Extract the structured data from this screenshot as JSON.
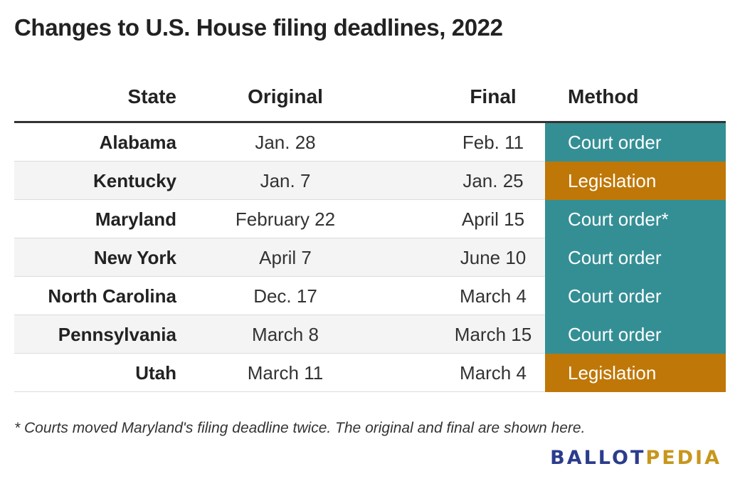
{
  "title": "Changes to U.S. House filing deadlines, 2022",
  "columns": {
    "state": "State",
    "original": "Original",
    "final": "Final",
    "method": "Method"
  },
  "method_colors": {
    "Court order": "#348f95",
    "Court order*": "#348f95",
    "Legislation": "#bf7707"
  },
  "rows": [
    {
      "state": "Alabama",
      "original": "Jan. 28",
      "final": "Feb. 11",
      "method": "Court order"
    },
    {
      "state": "Kentucky",
      "original": "Jan. 7",
      "final": "Jan. 25",
      "method": "Legislation"
    },
    {
      "state": "Maryland",
      "original": "February 22",
      "final": "April 15",
      "method": "Court order*"
    },
    {
      "state": "New York",
      "original": "April 7",
      "final": "June 10",
      "method": "Court order"
    },
    {
      "state": "North Carolina",
      "original": "Dec. 17",
      "final": "March 4",
      "method": "Court order"
    },
    {
      "state": "Pennsylvania",
      "original": "March 8",
      "final": "March 15",
      "method": "Court order"
    },
    {
      "state": "Utah",
      "original": "March 11",
      "final": "March 4",
      "method": "Legislation"
    }
  ],
  "footnote": "* Courts moved Maryland's filing deadline twice. The original and final are shown here.",
  "logo": {
    "part1": "BALLOT",
    "part2": "PEDIA"
  }
}
